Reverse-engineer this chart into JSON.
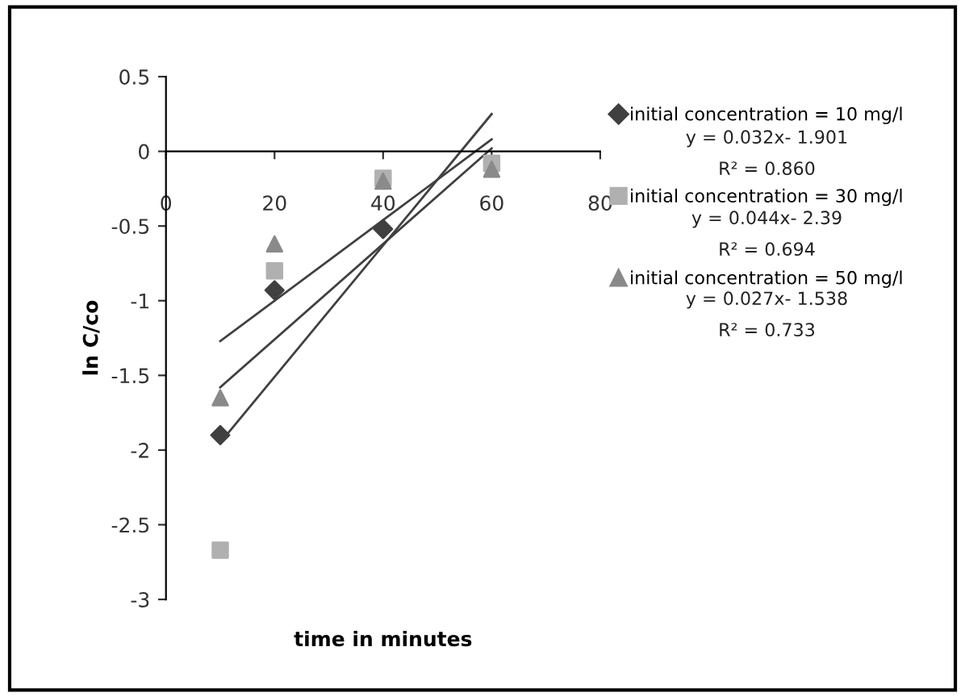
{
  "chart_data": {
    "type": "scatter",
    "xlabel": "time in minutes",
    "ylabel": "ln C/co",
    "xlim": [
      0,
      80
    ],
    "xticks": [
      0,
      20,
      40,
      60,
      80
    ],
    "ylim": [
      -3,
      0.5
    ],
    "yticks": [
      -3,
      -2.5,
      -2,
      -1.5,
      -1,
      -0.5,
      0,
      0.5
    ],
    "grid": false,
    "legend": "right",
    "series": [
      {
        "name": "initial concentration = 10 mg/l",
        "marker": "diamond",
        "color": "#404040",
        "x": [
          10,
          20,
          40
        ],
        "values": [
          -1.9,
          -0.93,
          -0.52
        ]
      },
      {
        "name": "initial concentration = 30 mg/l",
        "marker": "square",
        "color": "#b0b0b0",
        "x": [
          10,
          20,
          40,
          60
        ],
        "values": [
          -2.67,
          -0.8,
          -0.18,
          -0.08
        ]
      },
      {
        "name": "initial concentration = 50 mg/l",
        "marker": "triangle",
        "color": "#8a8a8a",
        "x": [
          10,
          20,
          40,
          60
        ],
        "values": [
          -1.65,
          -0.62,
          -0.2,
          -0.12
        ]
      },
      {
        "type": "line",
        "color": "#404040",
        "x": [
          10,
          60
        ],
        "values": [
          -1.58,
          0.02
        ]
      },
      {
        "type": "line",
        "color": "#404040",
        "x": [
          10,
          60
        ],
        "values": [
          -1.95,
          0.25
        ]
      },
      {
        "type": "line",
        "color": "#404040",
        "x": [
          10,
          60
        ],
        "values": [
          -1.27,
          0.08
        ]
      }
    ],
    "annotations": [
      "y = 0.032x- 1.901",
      "R² = 0.860",
      "y = 0.044x- 2.39",
      "R² = 0.694",
      "y = 0.027x- 1.538",
      "R² = 0.733"
    ]
  }
}
